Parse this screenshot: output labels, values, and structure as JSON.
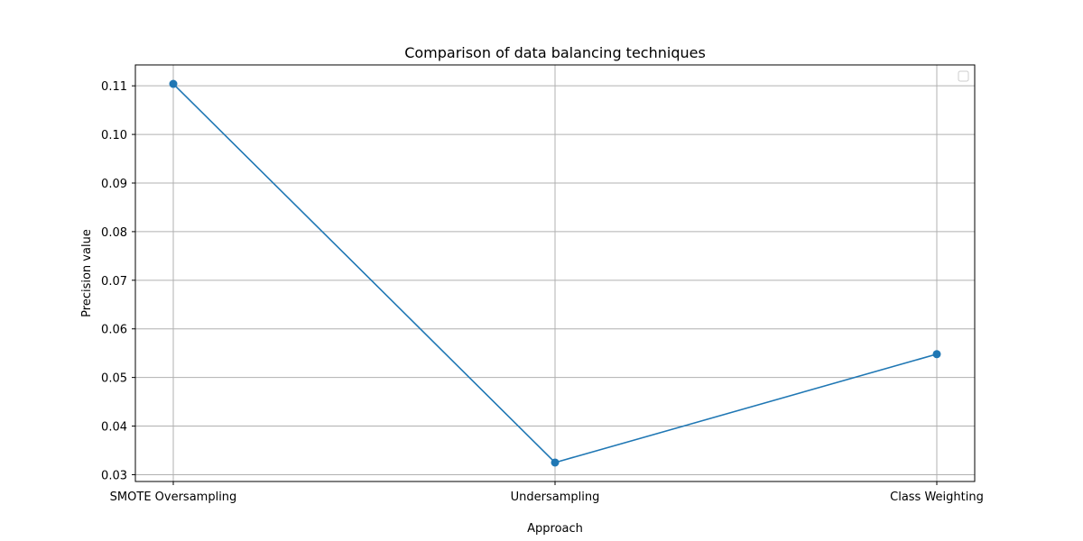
{
  "chart_data": {
    "type": "line",
    "title": "Comparison of data balancing techniques",
    "xlabel": "Approach",
    "ylabel": "Precision value",
    "categories": [
      "SMOTE Oversampling",
      "Undersampling",
      "Class Weighting"
    ],
    "series": [
      {
        "values": [
          0.1104,
          0.0325,
          0.0548
        ],
        "color": "#1f77b4",
        "marker": "circle"
      }
    ],
    "yticks": [
      0.03,
      0.04,
      0.05,
      0.06,
      0.07,
      0.08,
      0.09,
      0.1,
      0.11
    ],
    "ytick_labels": [
      "0.03",
      "0.04",
      "0.05",
      "0.06",
      "0.07",
      "0.08",
      "0.09",
      "0.10",
      "0.11"
    ],
    "ylim": [
      0.0286,
      0.1143
    ],
    "grid": true,
    "legend": {
      "placement": "top-right",
      "entries": []
    }
  }
}
